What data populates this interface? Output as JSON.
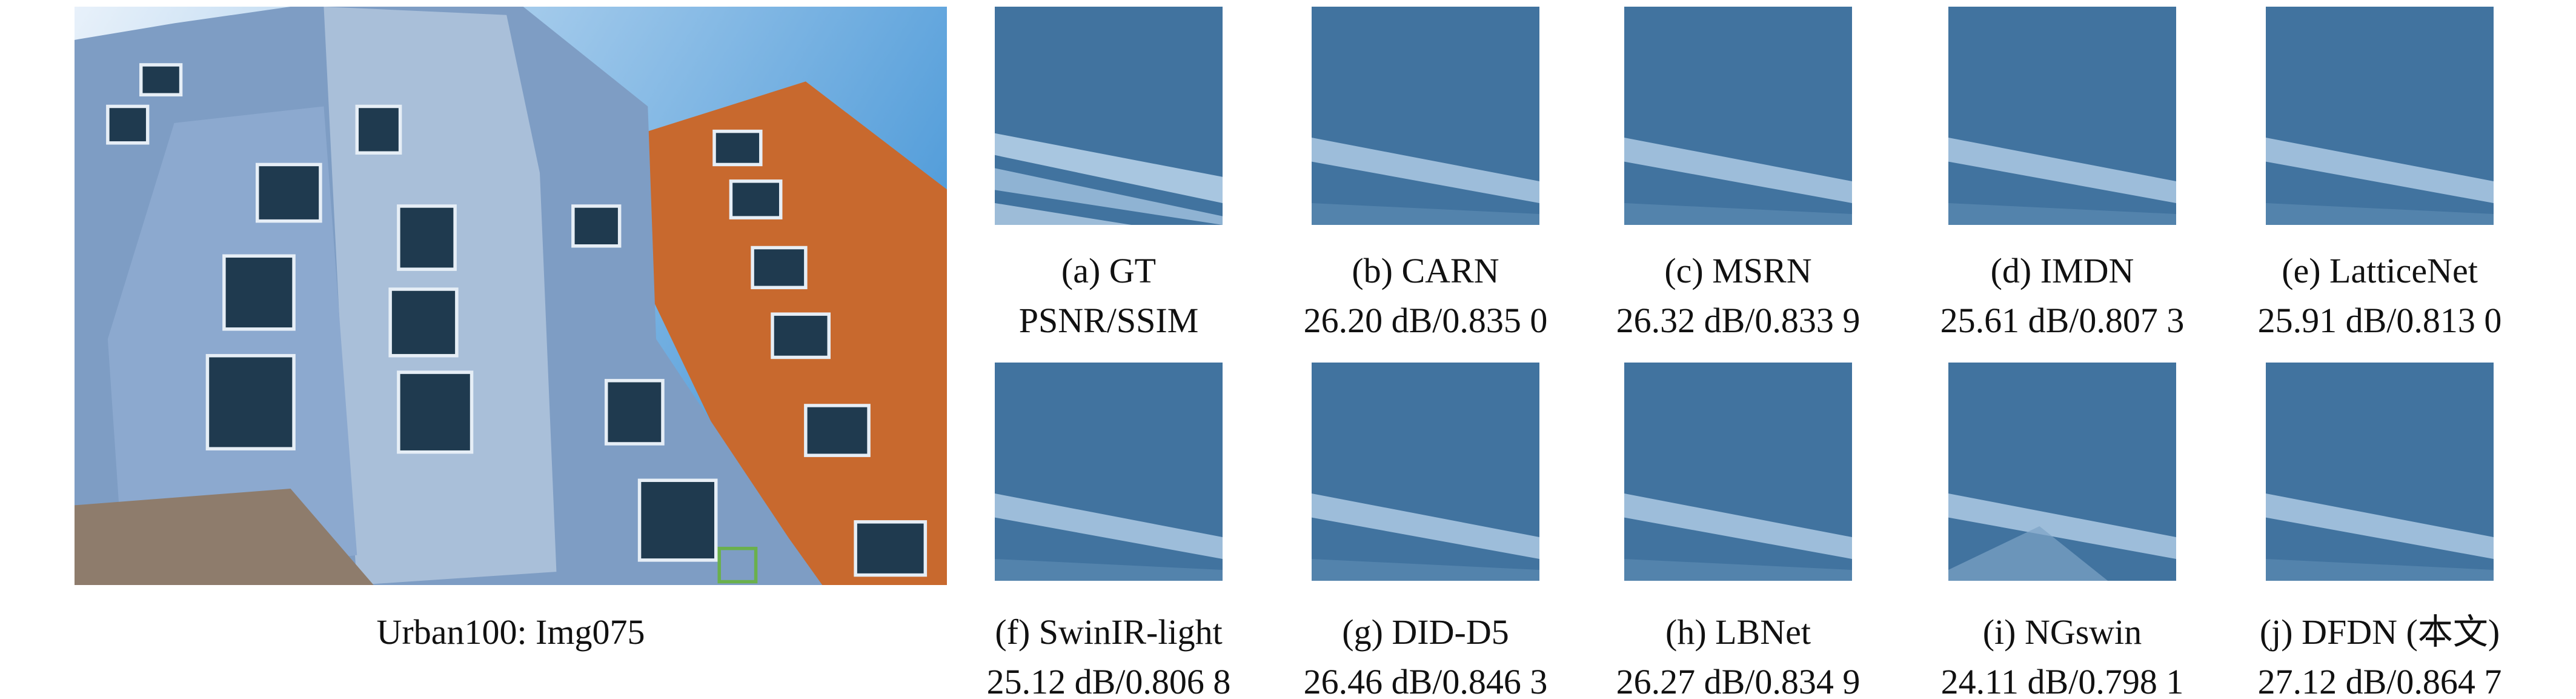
{
  "figure": {
    "image_caption": "Urban100: Img075",
    "panels": [
      {
        "label": "(a) GT",
        "metric": "PSNR/SSIM"
      },
      {
        "label": "(b) CARN",
        "metric": "26.20 dB/0.835 0"
      },
      {
        "label": "(c) MSRN",
        "metric": "26.32 dB/0.833 9"
      },
      {
        "label": "(d) IMDN",
        "metric": "25.61 dB/0.807 3"
      },
      {
        "label": "(e) LatticeNet",
        "metric": "25.91 dB/0.813 0"
      },
      {
        "label": "(f) SwinIR-light",
        "metric": "25.12 dB/0.806 8"
      },
      {
        "label": "(g) DID-D5",
        "metric": "26.46 dB/0.846 3"
      },
      {
        "label": "(h) LBNet",
        "metric": "26.27 dB/0.834 9"
      },
      {
        "label": "(i) NGswin",
        "metric": "24.11 dB/0.798 1"
      },
      {
        "label": "(j) DFDN (本文)",
        "metric": "27.12 dB/0.864 7"
      }
    ]
  }
}
